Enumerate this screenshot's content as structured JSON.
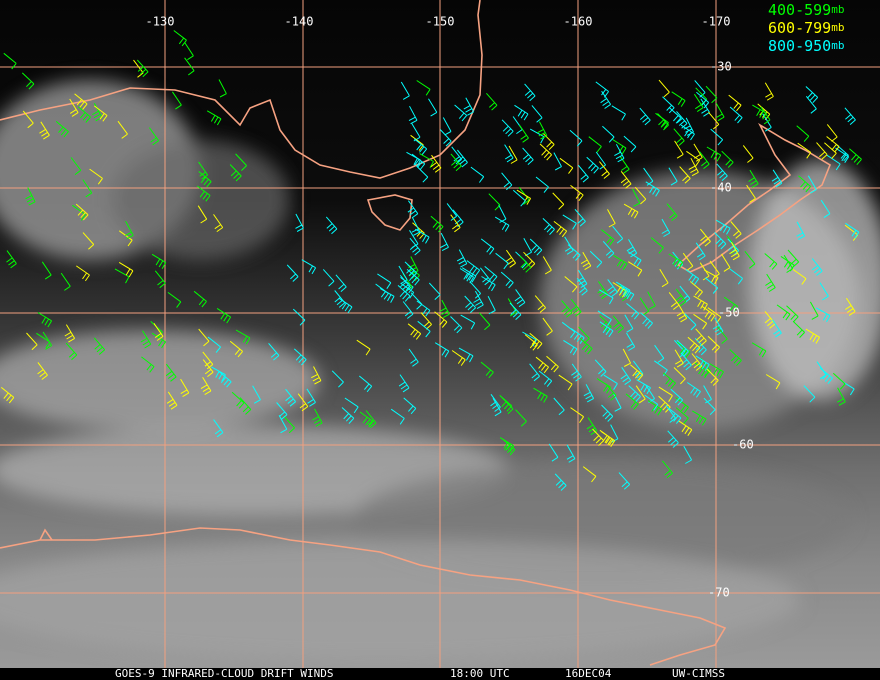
{
  "map": {
    "longitude_labels": [
      "-130",
      "-140",
      "-150",
      "-160",
      "-170"
    ],
    "latitude_labels": [
      "-30",
      "-40",
      "-50",
      "-60",
      "-70"
    ],
    "legend": [
      {
        "range": "400-599",
        "unit": "mb"
      },
      {
        "range": "600-799",
        "unit": "mb"
      },
      {
        "range": "800-950",
        "unit": "mb"
      }
    ],
    "footer": {
      "product": "GOES-9 INFRARED-CLOUD DRIFT WINDS",
      "time": "18:00 UTC",
      "date": "16DEC04",
      "source": "UW-CIMSS"
    }
  }
}
